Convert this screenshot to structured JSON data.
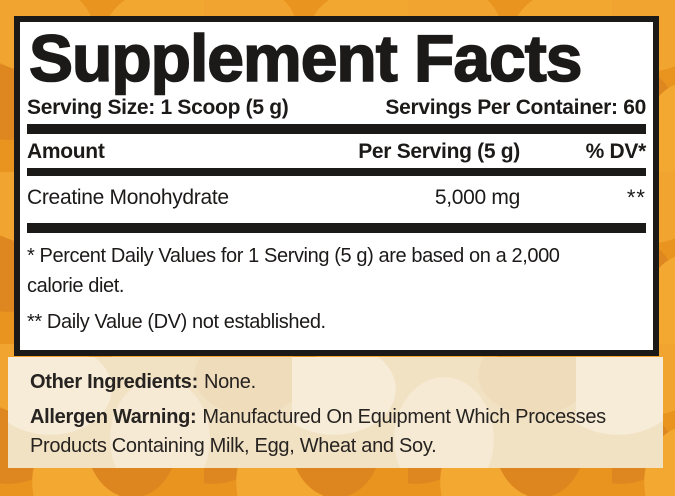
{
  "panel": {
    "title": "Supplement Facts",
    "serving_size_label": "Serving Size: 1 Scoop (5 g)",
    "servings_per_container": "Servings Per Container: 60",
    "columns": {
      "amount": "Amount",
      "per_serving": "Per Serving (5 g)",
      "dv": "% DV*"
    },
    "rows": [
      {
        "name": "Creatine Monohydrate",
        "per_serving": "5,000 mg",
        "dv": "**"
      }
    ],
    "footnotes": {
      "daily_value_lines": [
        "* Percent Daily Values for 1 Serving (5 g) are based on a 2,000",
        "calorie diet."
      ],
      "not_established": "** Daily Value (DV) not established."
    }
  },
  "info_panel": {
    "other_ingredients_label": "Other Ingredients:",
    "other_ingredients_value": "None.",
    "allergen_label": "Allergen Warning:",
    "allergen_text": "Manufactured On Equipment Which Processes Products Containing Milk, Egg, Wheat and Soy."
  },
  "colors": {
    "background_orange": "#e8941f",
    "pattern_orange_light": "#f2a731",
    "pattern_orange_dark": "#dd851e",
    "panel_background": "#ffffff",
    "ink_black": "#1c1a19",
    "info_panel_cream": "#f2e2c4"
  }
}
